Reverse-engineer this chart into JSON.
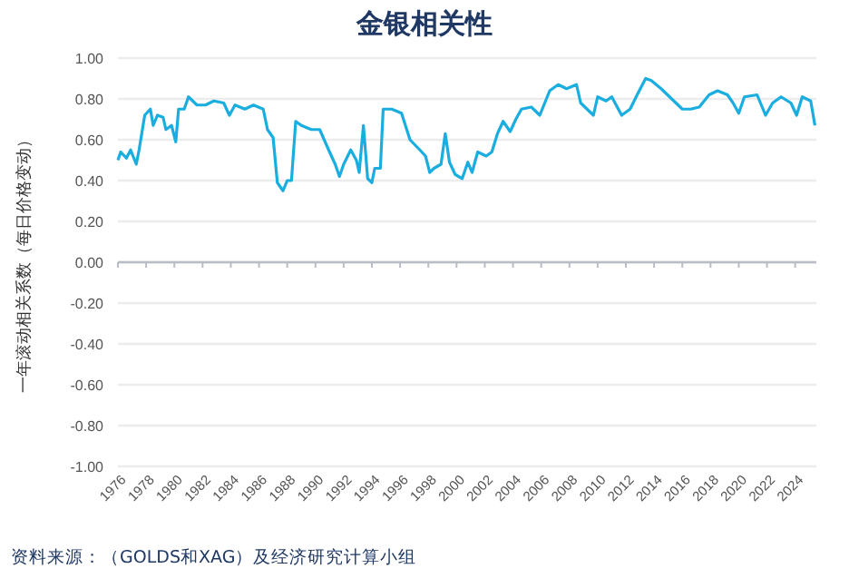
{
  "chart_data": {
    "type": "line",
    "title": "金银相关性",
    "ylabel": "一年滚动相关系数（每日价格变动）",
    "annotations": [
      "资料来源：（GOLDS和XAG）及经济研究计算小组"
    ],
    "x": [
      1976.0,
      1976.2,
      1976.6,
      1976.9,
      1977.3,
      1977.5,
      1977.9,
      1978.3,
      1978.5,
      1978.8,
      1979.2,
      1979.4,
      1979.8,
      1980.1,
      1980.3,
      1980.7,
      1981.0,
      1981.6,
      1982.2,
      1982.8,
      1983.5,
      1983.9,
      1984.3,
      1985.0,
      1985.6,
      1986.3,
      1986.6,
      1987.0,
      1987.3,
      1987.7,
      1988.0,
      1988.3,
      1988.6,
      1989.0,
      1989.7,
      1990.3,
      1991.0,
      1991.4,
      1991.7,
      1992.0,
      1992.5,
      1992.9,
      1993.1,
      1993.4,
      1993.7,
      1994.0,
      1994.2,
      1994.6,
      1994.8,
      1995.4,
      1996.1,
      1996.7,
      1997.4,
      1997.8,
      1998.1,
      1998.4,
      1998.9,
      1999.2,
      1999.5,
      1999.9,
      2000.4,
      2000.8,
      2001.1,
      2001.5,
      2002.1,
      2002.5,
      2002.9,
      2003.3,
      2003.8,
      2004.2,
      2004.6,
      2005.3,
      2005.9,
      2006.6,
      2007.2,
      2007.8,
      2008.5,
      2008.8,
      2009.7,
      2010.0,
      2010.6,
      2011.0,
      2011.7,
      2012.3,
      2012.8,
      2013.4,
      2013.8,
      2014.5,
      2015.1,
      2016.0,
      2016.6,
      2017.2,
      2017.9,
      2018.5,
      2019.2,
      2019.6,
      2020.0,
      2020.4,
      2021.3,
      2021.9,
      2022.4,
      2023.0,
      2023.7,
      2024.1,
      2024.5,
      2025.1,
      2025.4
    ],
    "series": [
      {
        "color": "#1aaee0",
        "values": [
          0.5,
          0.54,
          0.51,
          0.55,
          0.48,
          0.55,
          0.72,
          0.75,
          0.67,
          0.72,
          0.71,
          0.65,
          0.67,
          0.59,
          0.75,
          0.75,
          0.81,
          0.77,
          0.77,
          0.79,
          0.78,
          0.72,
          0.77,
          0.75,
          0.77,
          0.75,
          0.65,
          0.61,
          0.39,
          0.35,
          0.4,
          0.4,
          0.69,
          0.67,
          0.65,
          0.65,
          0.54,
          0.48,
          0.42,
          0.48,
          0.55,
          0.5,
          0.44,
          0.67,
          0.41,
          0.39,
          0.46,
          0.46,
          0.75,
          0.75,
          0.73,
          0.6,
          0.55,
          0.52,
          0.44,
          0.46,
          0.48,
          0.63,
          0.49,
          0.43,
          0.41,
          0.49,
          0.44,
          0.54,
          0.52,
          0.54,
          0.63,
          0.69,
          0.64,
          0.7,
          0.75,
          0.76,
          0.72,
          0.84,
          0.87,
          0.85,
          0.87,
          0.78,
          0.72,
          0.81,
          0.79,
          0.81,
          0.72,
          0.75,
          0.82,
          0.9,
          0.89,
          0.85,
          0.81,
          0.75,
          0.75,
          0.76,
          0.82,
          0.84,
          0.82,
          0.78,
          0.73,
          0.81,
          0.82,
          0.72,
          0.78,
          0.81,
          0.78,
          0.72,
          0.81,
          0.79,
          0.67
        ]
      }
    ],
    "xlim": [
      1976,
      2025.5
    ],
    "xticks": [
      1976,
      1978,
      1980,
      1982,
      1984,
      1986,
      1988,
      1990,
      1992,
      1994,
      1996,
      1998,
      2000,
      2002,
      2004,
      2006,
      2008,
      2010,
      2012,
      2014,
      2016,
      2018,
      2020,
      2022,
      2024
    ],
    "ylim": [
      -1,
      1
    ],
    "yticks": [
      {
        "value": -1,
        "label": "-1.00"
      },
      {
        "value": -0.8,
        "label": "-0.80"
      },
      {
        "value": -0.6,
        "label": "-0.60"
      },
      {
        "value": -0.4,
        "label": "-0.40"
      },
      {
        "value": -0.2,
        "label": "-0.20"
      },
      {
        "value": 0,
        "label": "0.00"
      },
      {
        "value": 0.2,
        "label": "0.20"
      },
      {
        "value": 0.4,
        "label": "0.40"
      },
      {
        "value": 0.6,
        "label": "0.60"
      },
      {
        "value": 0.8,
        "label": "0.80"
      },
      {
        "value": 1,
        "label": "1.00"
      }
    ],
    "grid": "y",
    "marker": "none",
    "line_style": "solid"
  }
}
